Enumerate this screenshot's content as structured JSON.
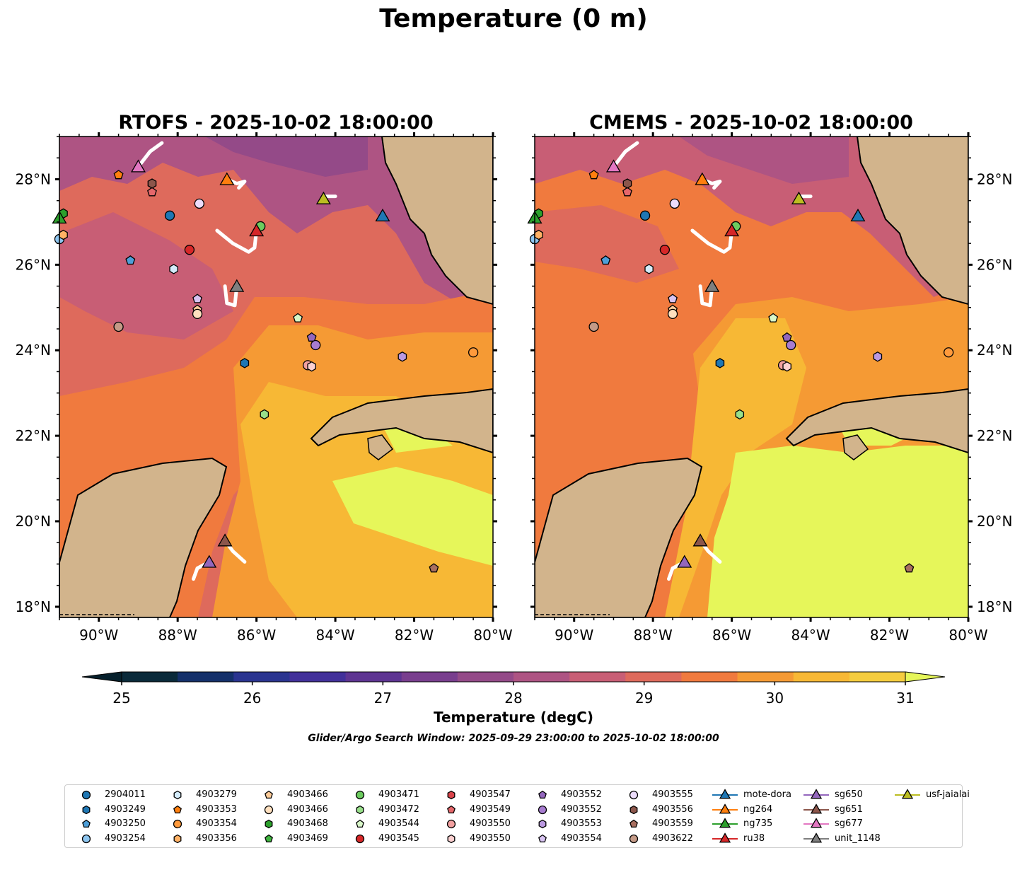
{
  "title": "Temperature (0 m)",
  "panels": [
    {
      "title": "RTOFS - 2025-10-02 18:00:00",
      "model": "rtofs"
    },
    {
      "title": "CMEMS - 2025-10-02 18:00:00",
      "model": "cmems"
    }
  ],
  "map": {
    "lon_range": [
      -91.0,
      -80.0
    ],
    "lat_range": [
      17.75,
      29.0
    ],
    "lon_ticks": [
      "90°W",
      "88°W",
      "86°W",
      "84°W",
      "82°W",
      "80°W"
    ],
    "lat_ticks": [
      "18°N",
      "20°N",
      "22°N",
      "24°N",
      "26°N",
      "28°N"
    ]
  },
  "colorbar": {
    "label": "Temperature (degC)",
    "min": 25,
    "max": 31,
    "step": 0.5,
    "ticks": [
      "25",
      "26",
      "27",
      "28",
      "29",
      "30",
      "31"
    ],
    "colors": [
      "#0a2a3a",
      "#14306a",
      "#2a3490",
      "#42309a",
      "#5e3492",
      "#793e8e",
      "#944a88",
      "#ae5483",
      "#c85e75",
      "#de6a5c",
      "#f07a3e",
      "#f59a34",
      "#f7b835",
      "#f5cc3e"
    ],
    "over_color": "#e6f65a",
    "under_color": "#06202c",
    "land_color": "#d2b48c"
  },
  "search_window": "Glider/Argo Search Window: 2025-09-29 23:00:00 to 2025-10-02 18:00:00",
  "legend": [
    {
      "label": "2904011",
      "marker": "circle",
      "color": "#1f77b4"
    },
    {
      "label": "4903249",
      "marker": "hexagon",
      "color": "#1f77b4"
    },
    {
      "label": "4903250",
      "marker": "pentagon",
      "color": "#4e9fd8"
    },
    {
      "label": "4903254",
      "marker": "circle",
      "color": "#8ec6f0"
    },
    {
      "label": "4903279",
      "marker": "hexagon",
      "color": "#d4ecfb"
    },
    {
      "label": "4903353",
      "marker": "pentagon",
      "color": "#ff7f0e"
    },
    {
      "label": "4903354",
      "marker": "circle",
      "color": "#ff9a3c"
    },
    {
      "label": "4903356",
      "marker": "hexagon",
      "color": "#ffb165"
    },
    {
      "label": "4903466",
      "marker": "pentagon",
      "color": "#ffcc99"
    },
    {
      "label": "4903466",
      "marker": "circle",
      "color": "#ffe0bf"
    },
    {
      "label": "4903468",
      "marker": "hexagon",
      "color": "#2ca02c"
    },
    {
      "label": "4903469",
      "marker": "pentagon",
      "color": "#3fb33f"
    },
    {
      "label": "4903471",
      "marker": "circle",
      "color": "#6ccb5f"
    },
    {
      "label": "4903472",
      "marker": "hexagon",
      "color": "#98df8a"
    },
    {
      "label": "4903544",
      "marker": "pentagon",
      "color": "#d8f7c8"
    },
    {
      "label": "4903545",
      "marker": "circle",
      "color": "#d62728"
    },
    {
      "label": "4903547",
      "marker": "hexagon",
      "color": "#d9434a"
    },
    {
      "label": "4903549",
      "marker": "pentagon",
      "color": "#e5676b"
    },
    {
      "label": "4903550",
      "marker": "circle",
      "color": "#f2a0a0"
    },
    {
      "label": "4903550",
      "marker": "hexagon",
      "color": "#fbd0d0"
    },
    {
      "label": "4903552",
      "marker": "pentagon",
      "color": "#9467bd"
    },
    {
      "label": "4903552",
      "marker": "circle",
      "color": "#a77cd0"
    },
    {
      "label": "4903553",
      "marker": "hexagon",
      "color": "#bb99e0"
    },
    {
      "label": "4903554",
      "marker": "pentagon",
      "color": "#d8c4f2"
    },
    {
      "label": "4903555",
      "marker": "circle",
      "color": "#ecdcfb"
    },
    {
      "label": "4903556",
      "marker": "hexagon",
      "color": "#8c564b"
    },
    {
      "label": "4903559",
      "marker": "pentagon",
      "color": "#a86f60"
    },
    {
      "label": "4903622",
      "marker": "circle",
      "color": "#c49a87"
    },
    {
      "label": "mote-dora",
      "marker": "triangle",
      "color": "#1f77b4"
    },
    {
      "label": "ng264",
      "marker": "triangle",
      "color": "#ff7f0e"
    },
    {
      "label": "ng735",
      "marker": "triangle",
      "color": "#2ca02c"
    },
    {
      "label": "ru38",
      "marker": "triangle",
      "color": "#d62728"
    },
    {
      "label": "sg650",
      "marker": "triangle",
      "color": "#9467bd"
    },
    {
      "label": "sg651",
      "marker": "triangle",
      "color": "#8c564b"
    },
    {
      "label": "sg677",
      "marker": "triangle",
      "color": "#e377c2"
    },
    {
      "label": "unit_1148",
      "marker": "triangle",
      "color": "#7f7f7f"
    },
    {
      "label": "usf-jaialai",
      "marker": "triangle",
      "color": "#bcbd22"
    }
  ],
  "observations": [
    {
      "id": "2904011",
      "marker": "circle",
      "color": "#1f77b4",
      "lon": -88.2,
      "lat": 27.15
    },
    {
      "id": "4903249",
      "marker": "hexagon",
      "color": "#1f77b4",
      "lon": -86.3,
      "lat": 23.7
    },
    {
      "id": "4903250",
      "marker": "pentagon",
      "color": "#4e9fd8",
      "lon": -89.2,
      "lat": 26.1
    },
    {
      "id": "4903254",
      "marker": "circle",
      "color": "#8ec6f0",
      "lon": -91.0,
      "lat": 26.6
    },
    {
      "id": "4903279",
      "marker": "hexagon",
      "color": "#d4ecfb",
      "lon": -88.1,
      "lat": 25.9
    },
    {
      "id": "4903353",
      "marker": "pentagon",
      "color": "#ff7f0e",
      "lon": -89.5,
      "lat": 28.1
    },
    {
      "id": "4903354",
      "marker": "circle",
      "color": "#ff9a3c",
      "lon": -80.5,
      "lat": 23.95
    },
    {
      "id": "4903356",
      "marker": "hexagon",
      "color": "#ffb165",
      "lon": -90.9,
      "lat": 26.7
    },
    {
      "id": "4903466",
      "marker": "pentagon",
      "color": "#ffcc99",
      "lon": -87.5,
      "lat": 24.95
    },
    {
      "id": "4903466",
      "marker": "circle",
      "color": "#ffe0bf",
      "lon": -87.5,
      "lat": 24.85
    },
    {
      "id": "4903468",
      "marker": "hexagon",
      "color": "#2ca02c",
      "lon": -90.9,
      "lat": 27.2
    },
    {
      "id": "4903471",
      "marker": "circle",
      "color": "#6ccb5f",
      "lon": -85.9,
      "lat": 26.9
    },
    {
      "id": "4903472",
      "marker": "hexagon",
      "color": "#98df8a",
      "lon": -85.8,
      "lat": 22.5
    },
    {
      "id": "4903544",
      "marker": "pentagon",
      "color": "#d8f7c8",
      "lon": -84.95,
      "lat": 24.75
    },
    {
      "id": "4903545",
      "marker": "circle",
      "color": "#d62728",
      "lon": -87.7,
      "lat": 26.35
    },
    {
      "id": "4903549",
      "marker": "pentagon",
      "color": "#e5676b",
      "lon": -88.65,
      "lat": 27.7
    },
    {
      "id": "4903550",
      "marker": "circle",
      "color": "#f2a0a0",
      "lon": -84.7,
      "lat": 23.65
    },
    {
      "id": "4903550",
      "marker": "hexagon",
      "color": "#fbd0d0",
      "lon": -84.6,
      "lat": 23.62
    },
    {
      "id": "4903552",
      "marker": "pentagon",
      "color": "#9467bd",
      "lon": -84.6,
      "lat": 24.3
    },
    {
      "id": "4903552",
      "marker": "circle",
      "color": "#a77cd0",
      "lon": -84.5,
      "lat": 24.12
    },
    {
      "id": "4903553",
      "marker": "hexagon",
      "color": "#bb99e0",
      "lon": -82.3,
      "lat": 23.85
    },
    {
      "id": "4903554",
      "marker": "pentagon",
      "color": "#d8c4f2",
      "lon": -87.5,
      "lat": 25.2
    },
    {
      "id": "4903555",
      "marker": "circle",
      "color": "#ecdcfb",
      "lon": -87.45,
      "lat": 27.43
    },
    {
      "id": "4903556",
      "marker": "hexagon",
      "color": "#8c564b",
      "lon": -88.65,
      "lat": 27.9
    },
    {
      "id": "4903559",
      "marker": "pentagon",
      "color": "#a86f60",
      "lon": -81.5,
      "lat": 18.9
    },
    {
      "id": "4903622",
      "marker": "circle",
      "color": "#c49a87",
      "lon": -89.5,
      "lat": 24.55
    },
    {
      "id": "mote-dora",
      "marker": "triangle",
      "color": "#1f77b4",
      "lon": -82.8,
      "lat": 27.15
    },
    {
      "id": "ng264",
      "marker": "triangle",
      "color": "#ff7f0e",
      "lon": -86.75,
      "lat": 28.0
    },
    {
      "id": "ng735",
      "marker": "triangle",
      "color": "#2ca02c",
      "lon": -91.0,
      "lat": 27.1
    },
    {
      "id": "ru38",
      "marker": "triangle",
      "color": "#d62728",
      "lon": -86.0,
      "lat": 26.8
    },
    {
      "id": "sg650",
      "marker": "triangle",
      "color": "#9467bd",
      "lon": -87.2,
      "lat": 19.05
    },
    {
      "id": "sg651",
      "marker": "triangle",
      "color": "#8c564b",
      "lon": -86.8,
      "lat": 19.55
    },
    {
      "id": "sg677",
      "marker": "triangle",
      "color": "#e377c2",
      "lon": -89.0,
      "lat": 28.3
    },
    {
      "id": "unit_1148",
      "marker": "triangle",
      "color": "#7f7f7f",
      "lon": -86.5,
      "lat": 25.5
    },
    {
      "id": "usf-jaialai",
      "marker": "triangle",
      "color": "#bcbd22",
      "lon": -84.3,
      "lat": 27.55
    }
  ],
  "tracks": [
    [
      [
        -88.95,
        28.35
      ],
      [
        -88.7,
        28.65
      ],
      [
        -88.4,
        28.85
      ]
    ],
    [
      [
        -86.75,
        28.0
      ],
      [
        -86.5,
        27.9
      ],
      [
        -86.3,
        27.95
      ],
      [
        -86.45,
        27.8
      ]
    ],
    [
      [
        -87.0,
        26.8
      ],
      [
        -86.6,
        26.5
      ],
      [
        -86.2,
        26.3
      ],
      [
        -86.05,
        26.4
      ],
      [
        -86.0,
        26.8
      ]
    ],
    [
      [
        -86.8,
        25.5
      ],
      [
        -86.75,
        25.1
      ],
      [
        -86.55,
        25.05
      ],
      [
        -86.5,
        25.5
      ]
    ],
    [
      [
        -84.3,
        27.6
      ],
      [
        -84.0,
        27.6
      ]
    ],
    [
      [
        -86.8,
        19.55
      ],
      [
        -86.6,
        19.3
      ],
      [
        -86.3,
        19.05
      ]
    ],
    [
      [
        -87.2,
        19.05
      ],
      [
        -87.5,
        18.9
      ],
      [
        -87.6,
        18.65
      ]
    ]
  ]
}
